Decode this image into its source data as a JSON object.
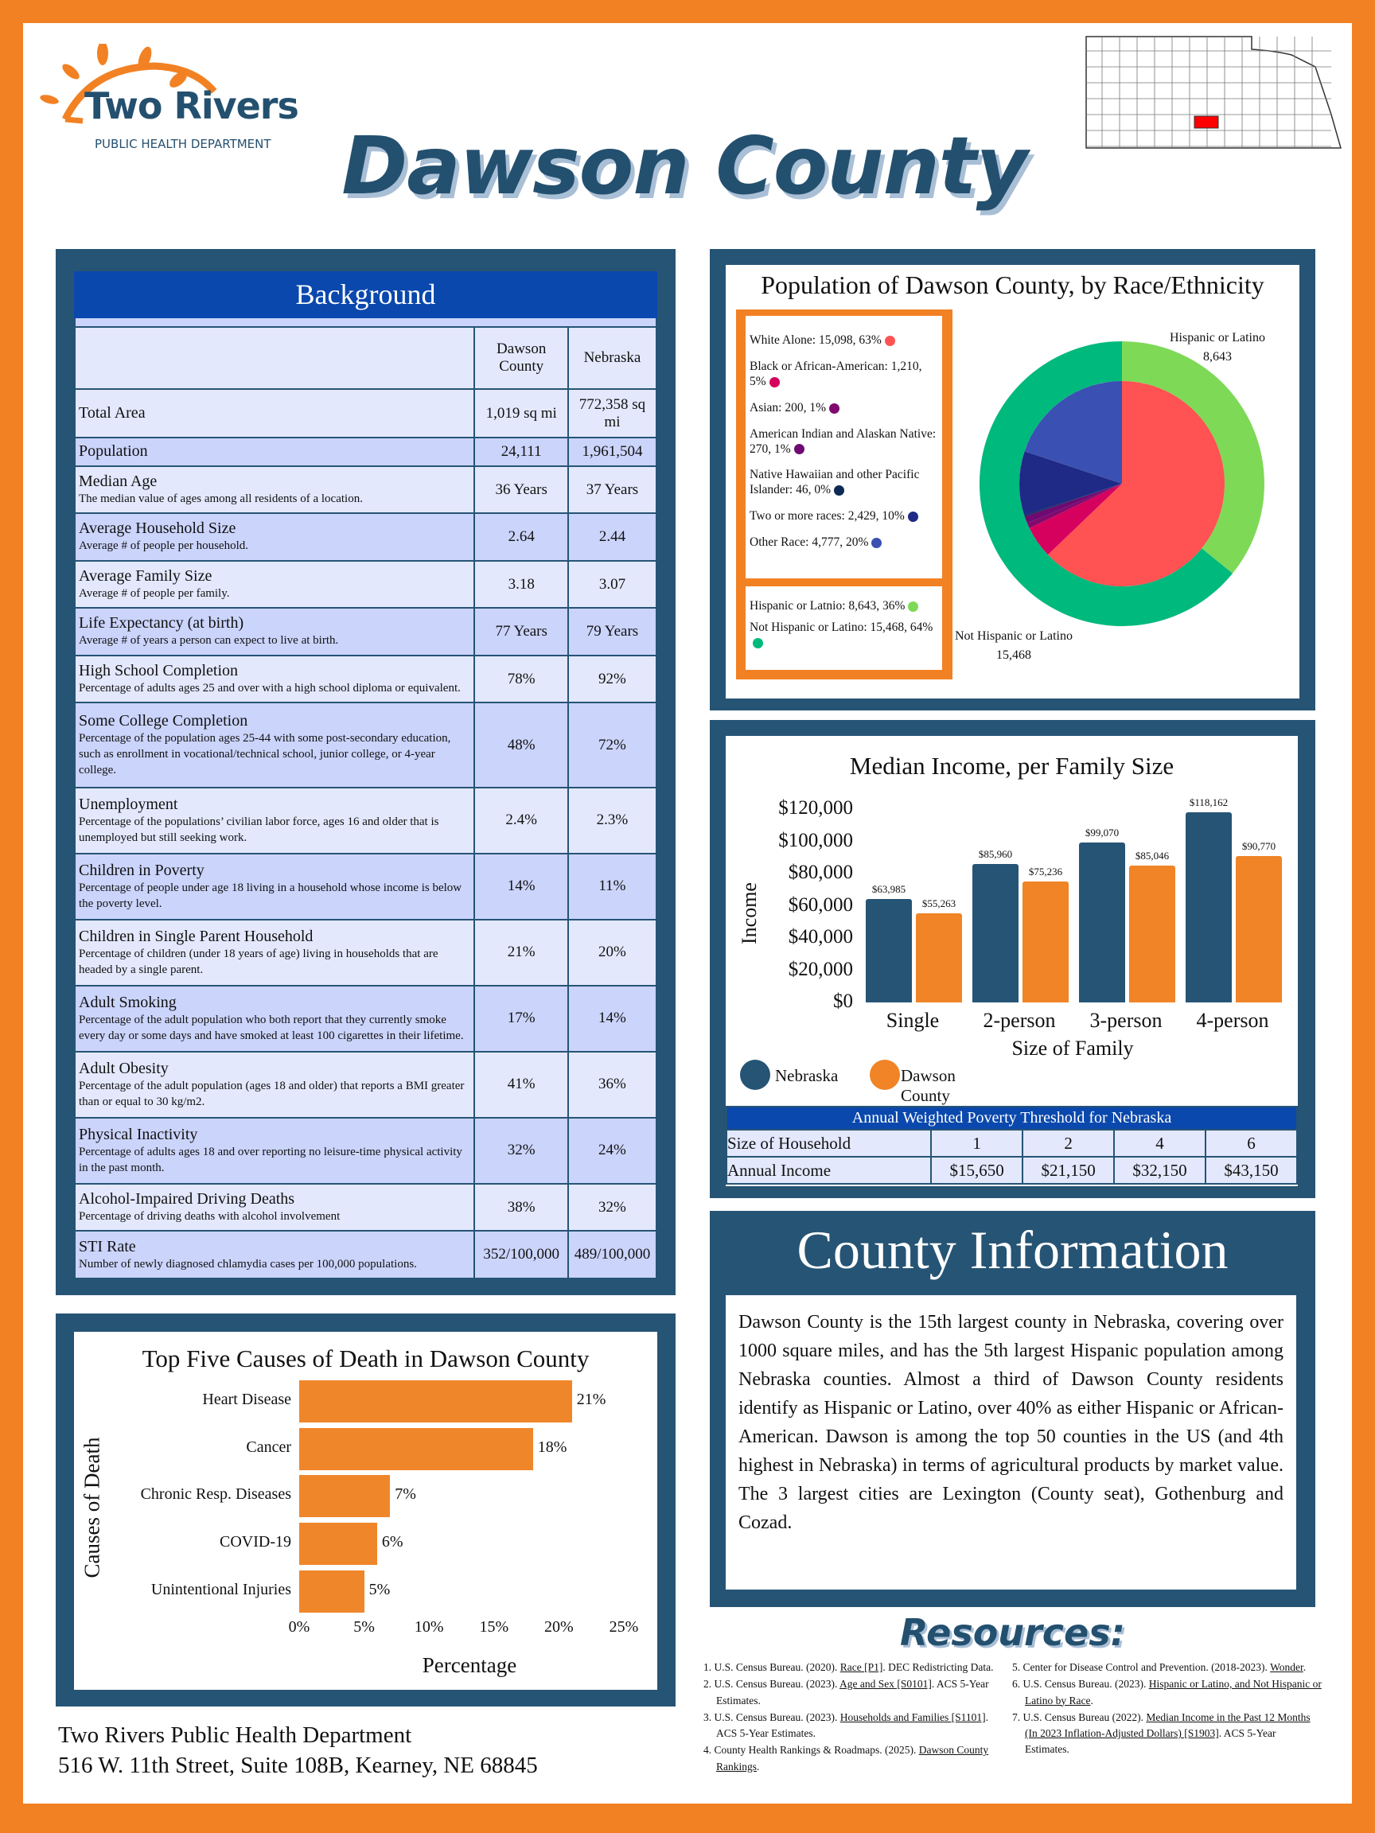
{
  "header": {
    "title": "Dawson County",
    "logo_name": "Two Rivers",
    "logo_sub": "PUBLIC HEALTH DEPARTMENT",
    "map_icon": "nebraska-county-map-icon"
  },
  "colors": {
    "navy": "#265475",
    "orange": "#f28124",
    "table_blue": "#0a48ad",
    "highlight": "#ff0000"
  },
  "background": {
    "title": "Background",
    "col_dawson": "Dawson County",
    "col_nebraska": "Nebraska",
    "rows": [
      {
        "label": "Total Area",
        "desc": "",
        "dawson": "1,019 sq mi",
        "nebraska": "772,358 sq mi"
      },
      {
        "label": "Population",
        "desc": "",
        "dawson": "24,111",
        "nebraska": "1,961,504"
      },
      {
        "label": "Median Age",
        "desc": "The median value of ages among all residents of a location.",
        "dawson": "36 Years",
        "nebraska": "37 Years"
      },
      {
        "label": "Average Household Size",
        "desc": "Average # of people per household.",
        "dawson": "2.64",
        "nebraska": "2.44"
      },
      {
        "label": "Average Family Size",
        "desc": "Average # of people per family.",
        "dawson": "3.18",
        "nebraska": "3.07"
      },
      {
        "label": "Life Expectancy (at birth)",
        "desc": "Average # of years a person can expect to live at birth.",
        "dawson": "77 Years",
        "nebraska": "79 Years"
      },
      {
        "label": "High School Completion",
        "desc": "Percentage of adults ages 25 and over with a high school diploma or equivalent.",
        "dawson": "78%",
        "nebraska": "92%"
      },
      {
        "label": "Some College Completion",
        "desc": "Percentage of the population ages 25-44 with some post-secondary education, such as enrollment in vocational/technical school, junior college, or 4-year college.",
        "dawson": "48%",
        "nebraska": "72%"
      },
      {
        "label": "Unemployment",
        "desc": "Percentage of the populations’ civilian labor force, ages 16 and older that is unemployed but still seeking work.",
        "dawson": "2.4%",
        "nebraska": "2.3%"
      },
      {
        "label": "Children in Poverty",
        "desc": "Percentage of people under age 18 living in a household whose income is below the poverty level.",
        "dawson": "14%",
        "nebraska": "11%"
      },
      {
        "label": "Children in Single Parent Household",
        "desc": "Percentage of children (under 18 years of age) living in households that are headed by a single parent.",
        "dawson": "21%",
        "nebraska": "20%"
      },
      {
        "label": "Adult Smoking",
        "desc": "Percentage of the adult population who both report that they currently smoke every day or some days and have smoked at least 100 cigarettes in their lifetime.",
        "dawson": "17%",
        "nebraska": "14%"
      },
      {
        "label": "Adult Obesity",
        "desc": "Percentage of the adult population (ages 18 and older) that reports a BMI greater than or equal to 30 kg/m2.",
        "dawson": "41%",
        "nebraska": "36%"
      },
      {
        "label": "Physical Inactivity",
        "desc": "Percentage of adults ages 18 and over reporting no leisure-time physical activity in the past month.",
        "dawson": "32%",
        "nebraska": "24%"
      },
      {
        "label": "Alcohol-Impaired Driving Deaths",
        "desc": "Percentage of driving deaths with alcohol involvement",
        "dawson": "38%",
        "nebraska": "32%"
      },
      {
        "label": "STI Rate",
        "desc": "Number of newly diagnosed chlamydia cases per 100,000 populations.",
        "dawson": "352/100,000",
        "nebraska": "489/100,000"
      }
    ]
  },
  "chart_data": [
    {
      "type": "pie",
      "title": "Population of Dawson County, by Race/Ethnicity",
      "inner": [
        {
          "name": "White Alone",
          "value": 15098,
          "pct": "63%",
          "label": "White Alone: 15,098, 63%",
          "color": "#ff5252"
        },
        {
          "name": "Black or African-American",
          "value": 1210,
          "pct": "5%",
          "label": "Black or African-American: 1,210, 5%",
          "color": "#d6005e"
        },
        {
          "name": "Asian",
          "value": 200,
          "pct": "1%",
          "label": "Asian: 200, 1%",
          "color": "#800a6e"
        },
        {
          "name": "American Indian and Alaskan Native",
          "value": 270,
          "pct": "1%",
          "label": "American Indian and Alaskan Native: 270, 1%",
          "color": "#6e0a72"
        },
        {
          "name": "Native Hawaiian and other Pacific Islander",
          "value": 46,
          "pct": "0%",
          "label": "Native Hawaiian and other Pacific Islander: 46, 0%",
          "color": "#0d2a55"
        },
        {
          "name": "Two or more races",
          "value": 2429,
          "pct": "10%",
          "label": "Two or more races: 2,429, 10%",
          "color": "#1f2a86"
        },
        {
          "name": "Other Race",
          "value": 4777,
          "pct": "20%",
          "label": "Other Race: 4,777, 20%",
          "color": "#3a50b2"
        }
      ],
      "outer": [
        {
          "name": "Hispanic or Latino",
          "value": 8643,
          "pct": "36%",
          "label": "Hispanic or Latnio: 8,643, 36%",
          "callout": "Hispanic or Latino",
          "callout_value": "8,643",
          "color": "#7ed957"
        },
        {
          "name": "Not Hispanic or Latino",
          "value": 15468,
          "pct": "64%",
          "label": "Not Hispanic or Latino: 15,468, 64%",
          "callout": "Not Hispanic or Latino",
          "callout_value": "15,468",
          "color": "#00b97c"
        }
      ]
    },
    {
      "type": "bar",
      "title": "Median Income, per Family Size",
      "xlabel": "Size of Family",
      "ylabel": "Income",
      "ylim": [
        0,
        120000
      ],
      "yticks": [
        "$0",
        "$20,000",
        "$40,000",
        "$60,000",
        "$80,000",
        "$100,000",
        "$120,000"
      ],
      "categories": [
        "Single",
        "2-person",
        "3-person",
        "4-person"
      ],
      "series": [
        {
          "name": "Nebraska",
          "color": "#265475",
          "values": [
            63985,
            85960,
            99070,
            118162
          ],
          "labels": [
            "$63,985",
            "$85,960",
            "$99,070",
            "$118,162"
          ]
        },
        {
          "name": "Dawson County",
          "color": "#f08426",
          "values": [
            55263,
            75236,
            85046,
            90770
          ],
          "labels": [
            "$55,263",
            "$75,236",
            "$85,046",
            "$90,770"
          ]
        }
      ],
      "legend": "bottom-left"
    },
    {
      "type": "bar",
      "orientation": "horizontal",
      "title": "Top Five Causes of Death in Dawson County",
      "xlabel": "Percentage",
      "ylabel": "Causes of Death",
      "xlim": [
        0,
        25
      ],
      "xticks": [
        "0%",
        "5%",
        "10%",
        "15%",
        "20%",
        "25%"
      ],
      "categories": [
        "Heart Disease",
        "Cancer",
        "Chronic Resp. Diseases",
        "COVID-19",
        "Unintentional Injuries"
      ],
      "values": [
        21,
        18,
        7,
        6,
        5
      ],
      "labels": [
        "21%",
        "18%",
        "7%",
        "6%",
        "5%"
      ],
      "color": "#f0862a"
    }
  ],
  "poverty": {
    "title": "Annual Weighted Poverty Threshold for Nebraska",
    "row1_label": "Size of Household",
    "sizes": [
      "1",
      "2",
      "4",
      "6"
    ],
    "row2_label": "Annual Income",
    "incomes": [
      "$15,650",
      "$21,150",
      "$32,150",
      "$43,150"
    ]
  },
  "county_info": {
    "title": "County Information",
    "text": "Dawson County is the 15th largest county in Nebraska, covering over 1000 square miles, and has the 5th largest Hispanic population among Nebraska counties. Almost a third of Dawson County residents identify as Hispanic or Latino, over 40% as either Hispanic or African-American. Dawson is among the top 50 counties in the US (and 4th highest in Nebraska) in terms of agricultural products by market value. The 3 largest cities are Lexington (County seat), Gothenburg and Cozad."
  },
  "footer": {
    "org": "Two Rivers Public Health Department",
    "address": "516 W. 11th Street, Suite 108B, Kearney, NE 68845"
  },
  "resources": {
    "title": "Resources:",
    "items": [
      {
        "num": "1.",
        "pre": "U.S. Census Bureau. (2020). ",
        "link": "Race [P1]",
        "post": ". DEC Redistricting Data."
      },
      {
        "num": "2.",
        "pre": "U.S. Census Bureau. (2023). ",
        "link": "Age and Sex [S0101]",
        "post": ". ACS 5-Year Estimates."
      },
      {
        "num": "3.",
        "pre": "U.S. Census Bureau. (2023). ",
        "link": "Households and Families [S1101]",
        "post": ". ACS 5-Year Estimates."
      },
      {
        "num": "4.",
        "pre": "County Health Rankings & Roadmaps. (2025). ",
        "link": "Dawson County Rankings",
        "post": "."
      },
      {
        "num": "5.",
        "pre": "Center for Disease Control and Prevention. (2018-2023). ",
        "link": "Wonder",
        "post": "."
      },
      {
        "num": "6.",
        "pre": "U.S. Census Bureau. (2023). ",
        "link": "Hispanic or Latino, and Not Hispanic or Latino by Race",
        "post": "."
      },
      {
        "num": "7.",
        "pre": "U.S. Census Bureau (2022). ",
        "link": "Median Income in the Past 12 Months (In 2023 Inflation-Adjusted Dollars) [S1903]",
        "post": ". ACS 5-Year Estimates."
      }
    ]
  }
}
